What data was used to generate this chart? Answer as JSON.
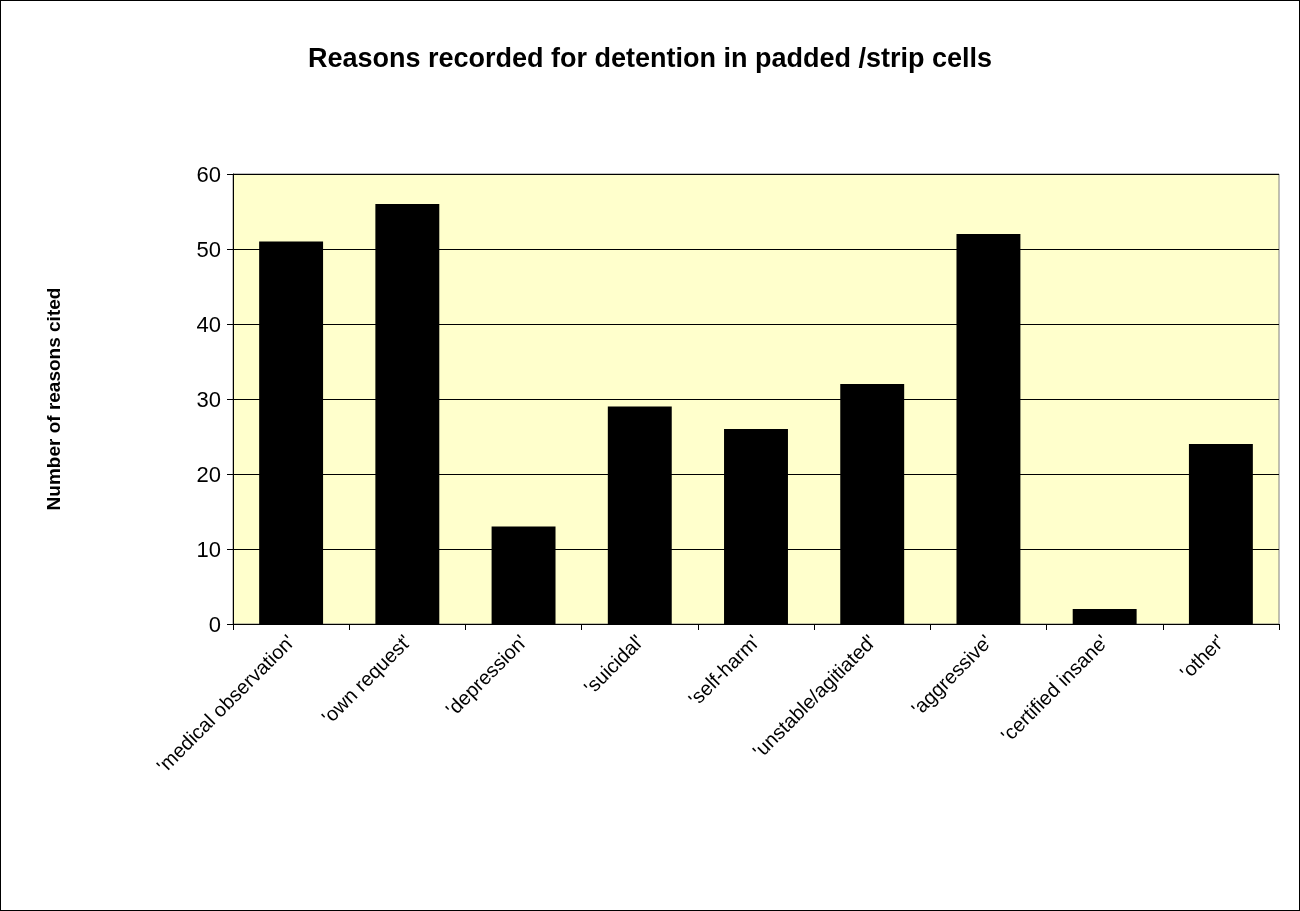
{
  "chart_data": {
    "type": "bar",
    "title": "Reasons recorded for detention in padded /strip cells",
    "ylabel": "Number of reasons cited",
    "categories": [
      "'medical observation'",
      "'own request'",
      "'depression'",
      "'suicidal'",
      "'self-harm'",
      "'unstable/agitiated'",
      "'aggressive'",
      "'certified insane'",
      "'other'"
    ],
    "values": [
      51,
      56,
      13,
      29,
      26,
      32,
      52,
      2,
      24
    ],
    "color": "#000000",
    "ylim": [
      0,
      60
    ],
    "yticks": [
      0,
      10,
      20,
      30,
      40,
      50,
      60
    ],
    "grid": true
  }
}
